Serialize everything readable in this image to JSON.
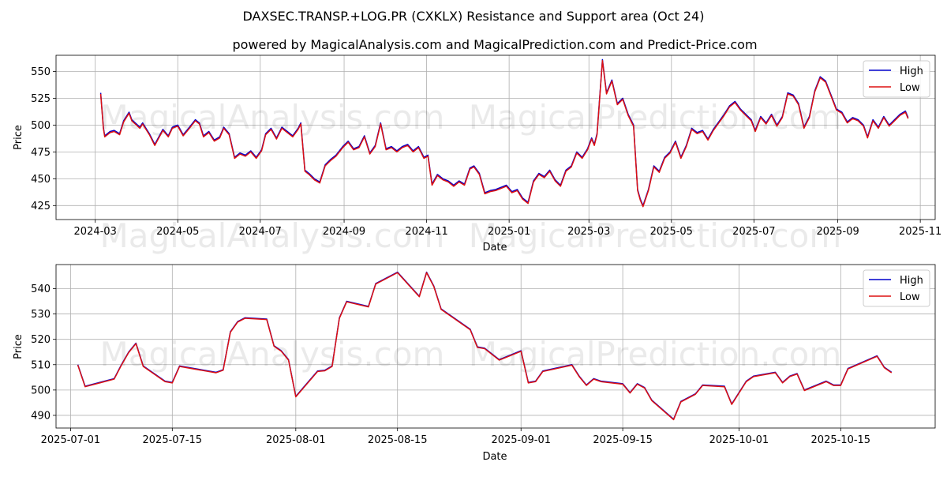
{
  "title": "DAXSEC.TRANSP.+LOG.PR (CXKLX) Resistance and Support area (Oct 24)",
  "subtitle": "powered by MagicalAnalysis.com and MagicalPrediction.com and Predict-Price.com",
  "watermarks": [
    "MagicalAnalysis.com",
    "MagicalPrediction.com"
  ],
  "colors": {
    "high": "#0000cc",
    "low": "#dd1111"
  },
  "chart_data": [
    {
      "type": "line",
      "xlabel": "Date",
      "ylabel": "Price",
      "legend": "top-right",
      "legend_labels": [
        "High",
        "Low"
      ],
      "xlim": [
        "2024-02-01",
        "2025-11-12"
      ],
      "ylim": [
        412,
        565
      ],
      "yticks": [
        425,
        450,
        475,
        500,
        525,
        550
      ],
      "xticks": [
        "2024-03",
        "2024-05",
        "2024-07",
        "2024-09",
        "2024-11",
        "2025-01",
        "2025-03",
        "2025-05",
        "2025-07",
        "2025-09",
        "2025-11"
      ],
      "x": [
        "2024-03-05",
        "2024-03-07",
        "2024-03-08",
        "2024-03-12",
        "2024-03-15",
        "2024-03-19",
        "2024-03-22",
        "2024-03-26",
        "2024-03-28",
        "2024-04-03",
        "2024-04-05",
        "2024-04-10",
        "2024-04-14",
        "2024-04-17",
        "2024-04-20",
        "2024-04-24",
        "2024-04-27",
        "2024-05-01",
        "2024-05-05",
        "2024-05-09",
        "2024-05-14",
        "2024-05-17",
        "2024-05-20",
        "2024-05-24",
        "2024-05-28",
        "2024-06-01",
        "2024-06-04",
        "2024-06-08",
        "2024-06-12",
        "2024-06-16",
        "2024-06-20",
        "2024-06-24",
        "2024-06-28",
        "2024-07-02",
        "2024-07-05",
        "2024-07-09",
        "2024-07-13",
        "2024-07-17",
        "2024-07-21",
        "2024-07-25",
        "2024-07-29",
        "2024-07-31",
        "2024-08-03",
        "2024-08-06",
        "2024-08-10",
        "2024-08-14",
        "2024-08-18",
        "2024-08-22",
        "2024-08-26",
        "2024-08-31",
        "2024-09-04",
        "2024-09-08",
        "2024-09-12",
        "2024-09-16",
        "2024-09-20",
        "2024-09-24",
        "2024-09-28",
        "2024-10-02",
        "2024-10-06",
        "2024-10-10",
        "2024-10-14",
        "2024-10-18",
        "2024-10-22",
        "2024-10-26",
        "2024-10-30",
        "2024-11-02",
        "2024-11-05",
        "2024-11-09",
        "2024-11-13",
        "2024-11-17",
        "2024-11-21",
        "2024-11-25",
        "2024-11-29",
        "2024-12-03",
        "2024-12-06",
        "2024-12-10",
        "2024-12-14",
        "2024-12-18",
        "2024-12-22",
        "2024-12-26",
        "2024-12-30",
        "2025-01-03",
        "2025-01-07",
        "2025-01-11",
        "2025-01-15",
        "2025-01-19",
        "2025-01-23",
        "2025-01-27",
        "2025-01-31",
        "2025-02-04",
        "2025-02-08",
        "2025-02-12",
        "2025-02-16",
        "2025-02-20",
        "2025-02-24",
        "2025-02-28",
        "2025-03-03",
        "2025-03-05",
        "2025-03-07",
        "2025-03-11",
        "2025-03-14",
        "2025-03-18",
        "2025-03-22",
        "2025-03-26",
        "2025-03-30",
        "2025-04-03",
        "2025-04-06",
        "2025-04-08",
        "2025-04-10",
        "2025-04-14",
        "2025-04-18",
        "2025-04-22",
        "2025-04-26",
        "2025-04-30",
        "2025-05-04",
        "2025-05-08",
        "2025-05-12",
        "2025-05-16",
        "2025-05-20",
        "2025-05-24",
        "2025-05-28",
        "2025-06-01",
        "2025-06-05",
        "2025-06-09",
        "2025-06-13",
        "2025-06-17",
        "2025-06-21",
        "2025-06-25",
        "2025-06-29",
        "2025-07-02",
        "2025-07-06",
        "2025-07-10",
        "2025-07-14",
        "2025-07-18",
        "2025-07-22",
        "2025-07-26",
        "2025-07-30",
        "2025-08-03",
        "2025-08-07",
        "2025-08-11",
        "2025-08-15",
        "2025-08-19",
        "2025-08-23",
        "2025-08-27",
        "2025-08-31",
        "2025-09-04",
        "2025-09-08",
        "2025-09-12",
        "2025-09-16",
        "2025-09-20",
        "2025-09-23",
        "2025-09-27",
        "2025-10-01",
        "2025-10-05",
        "2025-10-09",
        "2025-10-13",
        "2025-10-17",
        "2025-10-21",
        "2025-10-23"
      ],
      "series": [
        {
          "name": "High",
          "values": [
            530,
            498,
            490,
            494,
            495,
            492,
            504,
            512,
            505,
            498,
            502,
            492,
            482,
            489,
            496,
            490,
            498,
            500,
            491,
            497,
            505,
            502,
            490,
            494,
            486,
            489,
            498,
            492,
            470,
            474,
            472,
            476,
            470,
            477,
            492,
            497,
            488,
            498,
            494,
            490,
            497,
            502,
            458,
            455,
            450,
            447,
            463,
            468,
            472,
            480,
            485,
            478,
            480,
            490,
            474,
            481,
            502,
            478,
            480,
            476,
            480,
            482,
            476,
            480,
            470,
            472,
            445,
            454,
            450,
            448,
            444,
            448,
            445,
            460,
            462,
            455,
            437,
            439,
            440,
            442,
            444,
            438,
            440,
            432,
            428,
            448,
            455,
            452,
            458,
            449,
            444,
            458,
            462,
            475,
            470,
            478,
            488,
            482,
            492,
            561,
            530,
            542,
            520,
            525,
            510,
            500,
            440,
            431,
            425,
            440,
            462,
            457,
            470,
            475,
            485,
            470,
            481,
            497,
            493,
            495,
            487,
            496,
            503,
            510,
            518,
            522,
            515,
            510,
            505,
            495,
            508,
            502,
            510,
            500,
            508,
            530,
            528,
            520,
            498,
            508,
            532,
            545,
            541,
            528,
            515,
            512,
            503,
            507,
            505,
            500,
            489,
            505,
            498,
            508,
            500,
            505,
            510,
            513,
            507
          ]
        },
        {
          "name": "Low",
          "values": [
            529,
            497,
            489,
            493,
            494,
            491,
            503,
            511,
            504,
            497,
            501,
            491,
            481,
            488,
            495,
            489,
            497,
            499,
            490,
            496,
            504,
            501,
            489,
            493,
            485,
            488,
            497,
            491,
            469,
            473,
            471,
            475,
            469,
            476,
            491,
            496,
            487,
            497,
            493,
            489,
            496,
            501,
            457,
            454,
            449,
            446,
            462,
            467,
            471,
            479,
            484,
            477,
            479,
            489,
            473,
            480,
            501,
            477,
            479,
            475,
            479,
            481,
            475,
            479,
            469,
            471,
            444,
            453,
            449,
            447,
            443,
            447,
            444,
            459,
            461,
            454,
            436,
            438,
            439,
            441,
            443,
            437,
            439,
            431,
            427,
            447,
            454,
            451,
            457,
            448,
            443,
            457,
            461,
            474,
            469,
            477,
            487,
            481,
            491,
            560,
            529,
            541,
            519,
            524,
            509,
            499,
            439,
            430,
            424,
            439,
            461,
            456,
            469,
            474,
            484,
            469,
            480,
            496,
            492,
            494,
            486,
            495,
            502,
            509,
            517,
            521,
            514,
            509,
            504,
            494,
            507,
            501,
            509,
            499,
            507,
            529,
            527,
            519,
            497,
            507,
            531,
            544,
            540,
            527,
            514,
            511,
            502,
            506,
            504,
            499,
            488,
            504,
            497,
            507,
            499,
            504,
            509,
            512,
            506
          ]
        }
      ]
    },
    {
      "type": "line",
      "xlabel": "Date",
      "ylabel": "Price",
      "legend": "top-right",
      "legend_labels": [
        "High",
        "Low"
      ],
      "xlim": [
        "2025-06-29",
        "2025-10-28"
      ],
      "ylim": [
        485,
        549.5
      ],
      "yticks": [
        490,
        500,
        510,
        520,
        530,
        540
      ],
      "xticks": [
        "2025-07-01",
        "2025-07-15",
        "2025-08-01",
        "2025-08-15",
        "2025-09-01",
        "2025-09-15",
        "2025-10-01",
        "2025-10-15"
      ],
      "x": [
        "2025-07-02",
        "2025-07-03",
        "2025-07-07",
        "2025-07-08",
        "2025-07-09",
        "2025-07-10",
        "2025-07-11",
        "2025-07-14",
        "2025-07-15",
        "2025-07-16",
        "2025-07-21",
        "2025-07-22",
        "2025-07-23",
        "2025-07-24",
        "2025-07-25",
        "2025-07-28",
        "2025-07-29",
        "2025-07-30",
        "2025-07-31",
        "2025-08-01",
        "2025-08-04",
        "2025-08-05",
        "2025-08-06",
        "2025-08-07",
        "2025-08-08",
        "2025-08-11",
        "2025-08-12",
        "2025-08-15",
        "2025-08-18",
        "2025-08-19",
        "2025-08-20",
        "2025-08-21",
        "2025-08-25",
        "2025-08-26",
        "2025-08-27",
        "2025-08-29",
        "2025-09-01",
        "2025-09-02",
        "2025-09-03",
        "2025-09-04",
        "2025-09-08",
        "2025-09-09",
        "2025-09-10",
        "2025-09-11",
        "2025-09-12",
        "2025-09-15",
        "2025-09-16",
        "2025-09-17",
        "2025-09-18",
        "2025-09-19",
        "2025-09-22",
        "2025-09-23",
        "2025-09-25",
        "2025-09-26",
        "2025-09-29",
        "2025-09-30",
        "2025-10-02",
        "2025-10-03",
        "2025-10-06",
        "2025-10-07",
        "2025-10-08",
        "2025-10-09",
        "2025-10-10",
        "2025-10-13",
        "2025-10-14",
        "2025-10-15",
        "2025-10-16",
        "2025-10-20",
        "2025-10-21",
        "2025-10-22"
      ],
      "series": [
        {
          "name": "High",
          "values": [
            510,
            501.5,
            504.5,
            510,
            515,
            518.5,
            509.5,
            503.5,
            503,
            509.5,
            507,
            508,
            523,
            527,
            528.5,
            528,
            517.5,
            515.5,
            512,
            497.5,
            507.5,
            507.8,
            509.5,
            528.5,
            535,
            533,
            542,
            546.5,
            537,
            546.5,
            541,
            532,
            524,
            517,
            516.5,
            512,
            515.5,
            503,
            503.5,
            507.5,
            510,
            505.5,
            502,
            504.5,
            503.5,
            502.5,
            499,
            502.5,
            501,
            496,
            488.5,
            495.5,
            498.5,
            502,
            501.5,
            494.5,
            503.5,
            505.5,
            507,
            503,
            505.5,
            506.5,
            500,
            503.5,
            502,
            502,
            508.5,
            513.5,
            509,
            507
          ]
        },
        {
          "name": "Low",
          "values": [
            509.8,
            501.3,
            504.3,
            509.8,
            514.8,
            518.3,
            509.3,
            503.3,
            502.8,
            509.3,
            506.8,
            507.8,
            522.8,
            526.8,
            528.3,
            527.8,
            517.3,
            515.3,
            511.8,
            497.3,
            507.3,
            507.6,
            509.3,
            528.3,
            534.8,
            532.8,
            541.8,
            546.3,
            536.8,
            546.3,
            540.8,
            531.8,
            523.8,
            516.8,
            516.3,
            511.8,
            515.3,
            502.8,
            503.3,
            507.3,
            509.8,
            505.3,
            501.8,
            504.3,
            503.3,
            502.3,
            498.8,
            502.3,
            500.8,
            495.8,
            488.3,
            495.3,
            498.3,
            501.8,
            501.3,
            494.3,
            503.3,
            505.3,
            506.8,
            502.8,
            505.3,
            506.3,
            499.8,
            503.3,
            501.8,
            501.8,
            508.3,
            513.3,
            508.8,
            506.8
          ]
        }
      ]
    }
  ]
}
